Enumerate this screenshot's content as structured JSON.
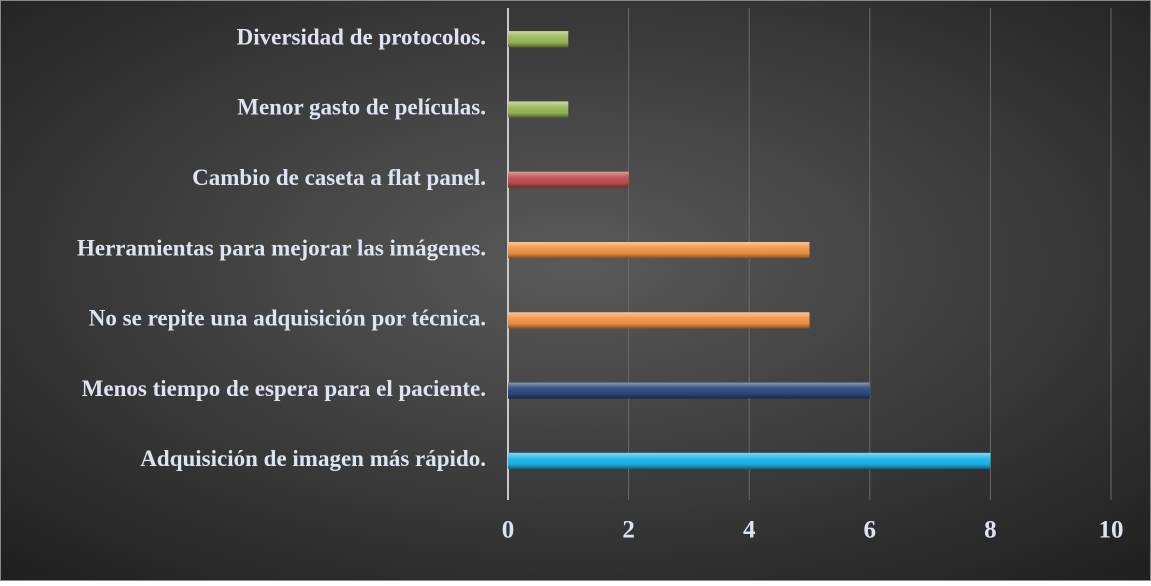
{
  "chart_data": {
    "type": "barh",
    "categories": [
      "Diversidad de protocolos.",
      "Menor gasto de películas.",
      "Cambio de caseta a flat panel.",
      "Herramientas para mejorar las imágenes.",
      "No se repite una adquisición por técnica.",
      "Menos tiempo de espera para el paciente.",
      "Adquisición de imagen más rápido."
    ],
    "values": [
      1,
      1,
      2,
      5,
      5,
      6,
      8
    ],
    "colors": [
      "#9bbb59",
      "#9bbb59",
      "#c0504d",
      "#f79646",
      "#f79646",
      "#2a4a7f",
      "#1cb8ec"
    ],
    "xlim": [
      0,
      10
    ],
    "xticks": [
      0,
      2,
      4,
      6,
      8,
      10
    ],
    "grid": true
  }
}
